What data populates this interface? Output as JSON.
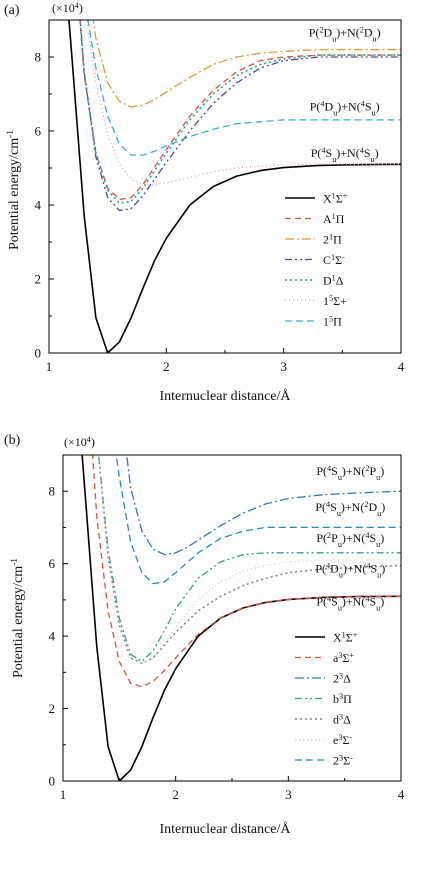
{
  "chart_data": [
    {
      "type": "line",
      "panel_label": "(a)",
      "multiplier": "(×10⁴)",
      "xlabel": "Internuclear distance/Å",
      "ylabel": "Potential energy/cm⁻¹",
      "xlim": [
        1,
        4
      ],
      "ylim": [
        0,
        9
      ],
      "xticks": [
        "1",
        "2",
        "3",
        "4"
      ],
      "yticks": [
        "0",
        "2",
        "4",
        "6",
        "8"
      ],
      "legend_position": "lower-right",
      "annotations": [
        {
          "text": "P(²Dᵤ)+N(²Dᵤ)",
          "x": 3.52,
          "y": 8.55
        },
        {
          "text": "P(⁴Dᵤ)+N(⁴Sᵤ)",
          "x": 3.52,
          "y": 6.55
        },
        {
          "text": "P(⁴Sᵤ)+N(⁴Sᵤ)",
          "x": 3.52,
          "y": 5.3
        }
      ],
      "series": [
        {
          "name": "X¹Σ⁺",
          "color": "#000000",
          "dash": "",
          "width": 1.6,
          "x": [
            1.15,
            1.2,
            1.3,
            1.4,
            1.5,
            1.6,
            1.7,
            1.8,
            1.9,
            2.0,
            2.2,
            2.4,
            2.6,
            2.8,
            3.0,
            3.3,
            3.6,
            4.0
          ],
          "y": [
            9.8,
            7.8,
            3.7,
            0.95,
            0.0,
            0.3,
            0.95,
            1.75,
            2.5,
            3.1,
            4.0,
            4.5,
            4.78,
            4.93,
            5.01,
            5.07,
            5.09,
            5.1
          ]
        },
        {
          "name": "A¹Π",
          "color": "#e0503a",
          "dash": "6,4",
          "width": 1.3,
          "x": [
            1.25,
            1.3,
            1.4,
            1.5,
            1.6,
            1.7,
            1.8,
            2.0,
            2.2,
            2.4,
            2.6,
            2.8,
            3.0,
            3.3,
            3.6,
            4.0
          ],
          "y": [
            9.6,
            7.5,
            5.4,
            4.45,
            4.15,
            4.2,
            4.55,
            5.5,
            6.4,
            7.1,
            7.6,
            7.9,
            8.0,
            8.05,
            8.05,
            8.05
          ]
        },
        {
          "name": "2¹Π",
          "color": "#e69a2e",
          "dash": "9,3,2,3",
          "width": 1.3,
          "x": [
            1.35,
            1.4,
            1.5,
            1.6,
            1.7,
            1.8,
            1.9,
            2.0,
            2.2,
            2.4,
            2.6,
            2.8,
            3.0,
            3.3,
            3.6,
            4.0
          ],
          "y": [
            9.6,
            8.5,
            7.3,
            6.8,
            6.65,
            6.7,
            6.85,
            7.05,
            7.45,
            7.8,
            8.0,
            8.1,
            8.15,
            8.2,
            8.2,
            8.2
          ]
        },
        {
          "name": "C¹Σ⁻",
          "color": "#4a4aa8",
          "dash": "7,3,2,3,2,3",
          "width": 1.3,
          "x": [
            1.25,
            1.3,
            1.4,
            1.5,
            1.6,
            1.7,
            1.8,
            2.0,
            2.2,
            2.4,
            2.6,
            2.8,
            3.0,
            3.3,
            3.6,
            4.0
          ],
          "y": [
            9.7,
            7.6,
            5.3,
            4.2,
            3.85,
            3.9,
            4.25,
            5.15,
            6.0,
            6.75,
            7.3,
            7.7,
            7.9,
            8.0,
            8.0,
            8.0
          ]
        },
        {
          "name": "D¹Δ",
          "color": "#1fa3a3",
          "dash": "2,3",
          "width": 1.6,
          "x": [
            1.25,
            1.3,
            1.4,
            1.5,
            1.6,
            1.7,
            1.8,
            2.0,
            2.2,
            2.4,
            2.6,
            2.8,
            3.0,
            3.3,
            3.6,
            4.0
          ],
          "y": [
            9.6,
            7.6,
            5.4,
            4.4,
            4.05,
            4.1,
            4.45,
            5.4,
            6.3,
            7.0,
            7.5,
            7.8,
            7.95,
            8.05,
            8.05,
            8.05
          ]
        },
        {
          "name": "1⁵Σ+",
          "color": "#cfa0a8",
          "dash": "1,3",
          "width": 1.2,
          "x": [
            1.3,
            1.4,
            1.5,
            1.6,
            1.7,
            1.8,
            1.9,
            2.0,
            2.2,
            2.4,
            2.6,
            2.8,
            3.0,
            3.3,
            3.6,
            4.0
          ],
          "y": [
            9.5,
            7.3,
            5.9,
            5.1,
            4.7,
            4.55,
            4.55,
            4.6,
            4.75,
            4.9,
            5.0,
            5.05,
            5.08,
            5.1,
            5.1,
            5.1
          ]
        },
        {
          "name": "1⁵Π",
          "color": "#30b4d8",
          "dash": "7,4",
          "width": 1.3,
          "x": [
            1.3,
            1.4,
            1.5,
            1.6,
            1.7,
            1.8,
            1.9,
            2.0,
            2.2,
            2.4,
            2.6,
            2.8,
            3.0,
            3.3,
            3.6,
            4.0
          ],
          "y": [
            9.6,
            7.7,
            6.4,
            5.65,
            5.35,
            5.35,
            5.45,
            5.6,
            5.85,
            6.05,
            6.2,
            6.25,
            6.3,
            6.3,
            6.3,
            6.3
          ]
        }
      ]
    },
    {
      "type": "line",
      "panel_label": "(b)",
      "multiplier": "(×10⁴)",
      "xlabel": "Internuclear distance/Å",
      "ylabel": "Potential energy/cm⁻¹",
      "xlim": [
        1,
        4
      ],
      "ylim": [
        0,
        9
      ],
      "xticks": [
        "1",
        "2",
        "3",
        "4"
      ],
      "yticks": [
        "0",
        "2",
        "4",
        "6",
        "8"
      ],
      "legend_position": "lower-right",
      "annotations": [
        {
          "text": "P(⁴Sᵤ)+N(²Pᵤ)",
          "x": 3.55,
          "y": 8.45
        },
        {
          "text": "P(⁴Sᵤ)+N(²Dᵤ)",
          "x": 3.55,
          "y": 7.45
        },
        {
          "text": "P(²Pᵤ)+N(⁴Sᵤ)",
          "x": 3.55,
          "y": 6.6
        },
        {
          "text": "P(⁴Dᵤ)+N(⁴Sᵤ)",
          "x": 3.55,
          "y": 5.75
        },
        {
          "text": "P(⁴Sᵤ)+N(⁴Sᵤ)",
          "x": 3.55,
          "y": 4.85
        }
      ],
      "series": [
        {
          "name": "X¹Σ⁺",
          "color": "#000000",
          "dash": "",
          "width": 1.6,
          "x": [
            1.15,
            1.2,
            1.3,
            1.4,
            1.5,
            1.6,
            1.7,
            1.8,
            1.9,
            2.0,
            2.2,
            2.4,
            2.6,
            2.8,
            3.0,
            3.3,
            3.6,
            4.0
          ],
          "y": [
            9.8,
            7.8,
            3.7,
            0.95,
            0.0,
            0.3,
            0.95,
            1.75,
            2.5,
            3.1,
            4.0,
            4.5,
            4.78,
            4.93,
            5.01,
            5.07,
            5.09,
            5.1
          ]
        },
        {
          "name": "a³Σ⁺",
          "color": "#e0503a",
          "dash": "6,4",
          "width": 1.3,
          "x": [
            1.25,
            1.3,
            1.4,
            1.5,
            1.6,
            1.7,
            1.8,
            1.9,
            2.0,
            2.2,
            2.4,
            2.6,
            2.8,
            3.0,
            3.3,
            3.6,
            4.0
          ],
          "y": [
            9.6,
            7.3,
            4.7,
            3.3,
            2.7,
            2.6,
            2.75,
            3.05,
            3.4,
            4.05,
            4.5,
            4.78,
            4.93,
            5.01,
            5.07,
            5.09,
            5.1
          ]
        },
        {
          "name": "2³Δ",
          "color": "#2a7ab8",
          "dash": "9,3,2,3",
          "width": 1.3,
          "x": [
            1.55,
            1.6,
            1.7,
            1.8,
            1.9,
            2.0,
            2.1,
            2.2,
            2.4,
            2.6,
            2.8,
            3.0,
            3.3,
            3.6,
            4.0
          ],
          "y": [
            9.4,
            8.1,
            6.9,
            6.4,
            6.25,
            6.3,
            6.45,
            6.65,
            7.05,
            7.4,
            7.65,
            7.8,
            7.9,
            7.95,
            8.0
          ]
        },
        {
          "name": "b³Π",
          "color": "#2aa38c",
          "dash": "7,3,2,3,2,3",
          "width": 1.3,
          "x": [
            1.3,
            1.4,
            1.5,
            1.6,
            1.7,
            1.8,
            1.9,
            2.0,
            2.2,
            2.4,
            2.6,
            2.8,
            3.0,
            3.3,
            3.6,
            4.0
          ],
          "y": [
            9.5,
            6.4,
            4.5,
            3.5,
            3.3,
            3.6,
            4.15,
            4.75,
            5.6,
            6.05,
            6.25,
            6.3,
            6.3,
            6.3,
            6.3,
            6.3
          ]
        },
        {
          "name": "d³Δ",
          "color": "#808080",
          "dash": "2,3",
          "width": 1.5,
          "x": [
            1.3,
            1.4,
            1.5,
            1.6,
            1.7,
            1.8,
            1.9,
            2.0,
            2.2,
            2.4,
            2.6,
            2.8,
            3.0,
            3.3,
            3.6,
            4.0
          ],
          "y": [
            9.5,
            6.2,
            4.3,
            3.4,
            3.25,
            3.4,
            3.75,
            4.1,
            4.7,
            5.1,
            5.4,
            5.6,
            5.75,
            5.85,
            5.9,
            5.95
          ]
        },
        {
          "name": "e³Σ⁻",
          "color": "#c8c8c8",
          "dash": "1,3",
          "width": 1.2,
          "x": [
            1.3,
            1.4,
            1.5,
            1.6,
            1.7,
            1.8,
            1.9,
            2.0,
            2.2,
            2.4,
            2.6,
            2.8,
            3.0,
            3.3,
            3.6,
            4.0
          ],
          "y": [
            9.4,
            6.3,
            4.4,
            3.45,
            3.25,
            3.4,
            3.8,
            4.25,
            5.0,
            5.5,
            5.8,
            5.95,
            6.05,
            6.1,
            6.1,
            6.1
          ]
        },
        {
          "name": "2³Σ⁻",
          "color": "#1f8fb0",
          "dash": "7,4",
          "width": 1.3,
          "x": [
            1.45,
            1.5,
            1.6,
            1.7,
            1.8,
            1.9,
            2.0,
            2.2,
            2.4,
            2.6,
            2.8,
            3.0,
            3.3,
            3.6,
            4.0
          ],
          "y": [
            9.5,
            8.4,
            6.6,
            5.75,
            5.45,
            5.5,
            5.75,
            6.3,
            6.7,
            6.9,
            7.0,
            7.0,
            7.0,
            7.0,
            7.0
          ]
        }
      ]
    }
  ]
}
